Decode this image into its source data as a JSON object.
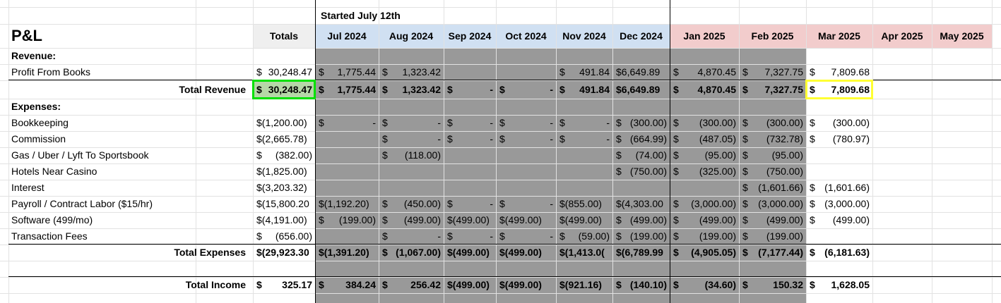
{
  "sheet": {
    "note": "Started July 12th",
    "title": "P&L",
    "totals_header": "Totals",
    "sections": {
      "revenue_header": "Revenue:",
      "expenses_header": "Expenses:"
    }
  },
  "months": [
    {
      "label": "Jul 2024",
      "fill": "#d0e0f2"
    },
    {
      "label": "Aug 2024",
      "fill": "#d0e0f2"
    },
    {
      "label": "Sep 2024",
      "fill": "#d0e0f2"
    },
    {
      "label": "Oct 2024",
      "fill": "#d0e0f2"
    },
    {
      "label": "Nov 2024",
      "fill": "#d0e0f2"
    },
    {
      "label": "Dec 2024",
      "fill": "#d0e0f2"
    },
    {
      "label": "Jan 2025",
      "fill": "#f2cccc"
    },
    {
      "label": "Feb 2025",
      "fill": "#f2cccc"
    },
    {
      "label": "Mar 2025",
      "fill": "#f2cccc"
    },
    {
      "label": "Apr 2025",
      "fill": "#f2cccc"
    },
    {
      "label": "May 2025",
      "fill": "#f2cccc"
    }
  ],
  "colors": {
    "gray_block": "#999999",
    "totals_header_fill": "#efefef",
    "green_highlight": "#b6d7a8",
    "green_border": "#00e000",
    "yellow_border": "#ffff33"
  },
  "rows": [
    {
      "label": "Profit From Books",
      "kind": "item",
      "total": [
        "$",
        "30,248.47"
      ],
      "cells": [
        [
          "$",
          "1,775.44"
        ],
        [
          "$",
          "1,323.42"
        ],
        null,
        null,
        [
          "$",
          "491.84"
        ],
        [
          "$6,649.89",
          ""
        ],
        [
          "$",
          "4,870.45"
        ],
        [
          "$",
          "7,327.75"
        ],
        [
          "$",
          "7,809.68"
        ],
        null,
        null
      ]
    },
    {
      "label": "Total Revenue",
      "kind": "total",
      "total": [
        "$",
        "30,248.47"
      ],
      "cells": [
        [
          "$",
          "1,775.44"
        ],
        [
          "$",
          "1,323.42"
        ],
        [
          "$",
          "-"
        ],
        [
          "$",
          "-"
        ],
        [
          "$",
          "491.84"
        ],
        [
          "$6,649.89",
          ""
        ],
        [
          "$",
          "4,870.45"
        ],
        [
          "$",
          "7,327.75"
        ],
        [
          "$",
          "7,809.68"
        ],
        null,
        null
      ]
    },
    {
      "label": "Bookkeeping",
      "kind": "item",
      "total": [
        "$(1,200.00)",
        ""
      ],
      "cells": [
        [
          "$",
          "-"
        ],
        [
          "$",
          "-"
        ],
        [
          "$",
          "-"
        ],
        [
          "$",
          "-"
        ],
        [
          "$",
          "-"
        ],
        [
          "$",
          "(300.00)"
        ],
        [
          "$",
          "(300.00)"
        ],
        [
          "$",
          "(300.00)"
        ],
        [
          "$",
          "(300.00)"
        ],
        null,
        null
      ]
    },
    {
      "label": "Commission",
      "kind": "item",
      "total": [
        "$(2,665.78)",
        ""
      ],
      "cells": [
        null,
        [
          "$",
          "-"
        ],
        [
          "$",
          "-"
        ],
        [
          "$",
          "-"
        ],
        [
          "$",
          "-"
        ],
        [
          "$",
          "(664.99)"
        ],
        [
          "$",
          "(487.05)"
        ],
        [
          "$",
          "(732.78)"
        ],
        [
          "$",
          "(780.97)"
        ],
        null,
        null
      ]
    },
    {
      "label": "Gas / Uber / Lyft To Sportsbook",
      "kind": "item",
      "total": [
        "$",
        "(382.00)"
      ],
      "cells": [
        null,
        [
          "$",
          "(118.00)"
        ],
        null,
        null,
        null,
        [
          "$",
          "(74.00)"
        ],
        [
          "$",
          "(95.00)"
        ],
        [
          "$",
          "(95.00)"
        ],
        null,
        null,
        null
      ]
    },
    {
      "label": "Hotels Near Casino",
      "kind": "item",
      "total": [
        "$(1,825.00)",
        ""
      ],
      "cells": [
        null,
        null,
        null,
        null,
        null,
        [
          "$",
          "(750.00)"
        ],
        [
          "$",
          "(325.00)"
        ],
        [
          "$",
          "(750.00)"
        ],
        null,
        null,
        null
      ]
    },
    {
      "label": "Interest",
      "kind": "item",
      "total": [
        "$(3,203.32)",
        ""
      ],
      "cells": [
        null,
        null,
        null,
        null,
        null,
        null,
        null,
        [
          "$",
          "(1,601.66)"
        ],
        [
          "$",
          "(1,601.66)"
        ],
        null,
        null
      ]
    },
    {
      "label": "Payroll / Contract Labor ($15/hr)",
      "kind": "item",
      "total": [
        "$(15,800.20",
        ""
      ],
      "cells": [
        [
          "$(1,192.20)",
          ""
        ],
        [
          "$",
          "(450.00)"
        ],
        [
          "$",
          "-"
        ],
        [
          "$",
          "-"
        ],
        [
          "$(855.00)",
          ""
        ],
        [
          "$(4,303.00",
          ""
        ],
        [
          "$",
          "(3,000.00)"
        ],
        [
          "$",
          "(3,000.00)"
        ],
        [
          "$",
          "(3,000.00)"
        ],
        null,
        null
      ]
    },
    {
      "label": "Software (499/mo)",
      "kind": "item",
      "total": [
        "$(4,191.00)",
        ""
      ],
      "cells": [
        [
          "$",
          "(199.00)"
        ],
        [
          "$",
          "(499.00)"
        ],
        [
          "$(499.00)",
          ""
        ],
        [
          "$(499.00)",
          ""
        ],
        [
          "$(499.00)",
          ""
        ],
        [
          "$",
          "(499.00)"
        ],
        [
          "$",
          "(499.00)"
        ],
        [
          "$",
          "(499.00)"
        ],
        [
          "$",
          "(499.00)"
        ],
        null,
        null
      ]
    },
    {
      "label": "Transaction Fees",
      "kind": "item",
      "total": [
        "$",
        "(656.00)"
      ],
      "cells": [
        null,
        [
          "$",
          "-"
        ],
        [
          "$",
          "-"
        ],
        [
          "$",
          "-"
        ],
        [
          "$",
          "(59.00)"
        ],
        [
          "$",
          "(199.00)"
        ],
        [
          "$",
          "(199.00)"
        ],
        [
          "$",
          "(199.00)"
        ],
        null,
        null,
        null
      ]
    },
    {
      "label": "Total Expenses",
      "kind": "total",
      "total": [
        "$(29,923.30",
        ""
      ],
      "cells": [
        [
          "$(1,391.20)",
          ""
        ],
        [
          "$",
          "(1,067.00)"
        ],
        [
          "$(499.00)",
          ""
        ],
        [
          "$(499.00)",
          ""
        ],
        [
          "$(1,413.0(",
          ""
        ],
        [
          "$(6,789.99",
          ""
        ],
        [
          "$",
          "(4,905.05)"
        ],
        [
          "$",
          "(7,177.44)"
        ],
        [
          "$",
          "(6,181.63)"
        ],
        null,
        null
      ]
    },
    {
      "label": "Total Income",
      "kind": "total",
      "total": [
        "$",
        "325.17"
      ],
      "cells": [
        [
          "$",
          "384.24"
        ],
        [
          "$",
          "256.42"
        ],
        [
          "$(499.00)",
          ""
        ],
        [
          "$(499.00)",
          ""
        ],
        [
          "$(921.16)",
          ""
        ],
        [
          "$",
          "(140.10)"
        ],
        [
          "$",
          "(34.60)"
        ],
        [
          "$",
          "150.32"
        ],
        [
          "$",
          "1,628.05"
        ],
        null,
        null
      ]
    }
  ]
}
